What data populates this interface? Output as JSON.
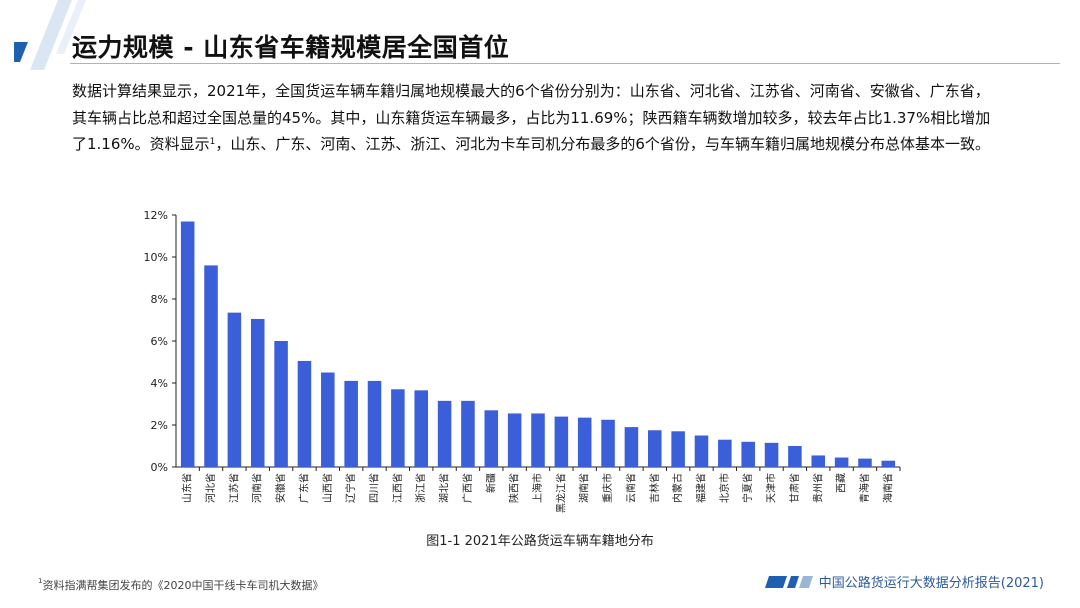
{
  "title": "运力规模 - 山东省车籍规模居全国首位",
  "body": {
    "text_before_sup": "数据计算结果显示，2021年，全国货运车辆车籍归属地规模最大的6个省份分别为：山东省、河北省、江苏省、河南省、安徽省、广东省，其车辆占比总和超过全国总量的45%。其中，山东籍货运车辆最多，占比为11.69%；陕西籍车辆数增加较多，较去年占比1.37%相比增加了1.16%。资料显示",
    "sup": "1",
    "text_after_sup": "，山东、广东、河南、江苏、浙江、河北为卡车司机分布最多的6个省份，与车辆车籍归属地规模分布总体基本一致。"
  },
  "caption": "图1-1 2021年公路货运车辆车籍地分布",
  "footnote": {
    "sup": "1",
    "text": "资料指满帮集团发布的《2020中国干线卡车司机大数据》"
  },
  "report_name": "中国公路货运行大数据分析报告(2021)",
  "colors": {
    "bar": "#3b5fd9",
    "accent": "#1f5fb0",
    "rule": "#9ab7d8",
    "report_text": "#2c5a9c"
  },
  "chart_data": {
    "type": "bar",
    "title": "",
    "xlabel": "",
    "ylabel": "",
    "ylim": [
      0,
      12
    ],
    "yticks": [
      0,
      2,
      4,
      6,
      8,
      10,
      12
    ],
    "ytick_labels": [
      "0%",
      "2%",
      "4%",
      "6%",
      "8%",
      "10%",
      "12%"
    ],
    "categories": [
      "山东省",
      "河北省",
      "江苏省",
      "河南省",
      "安徽省",
      "广东省",
      "山西省",
      "辽宁省",
      "四川省",
      "江西省",
      "浙江省",
      "湖北省",
      "广西省",
      "新疆",
      "陕西省",
      "上海市",
      "黑龙江省",
      "湖南省",
      "重庆市",
      "云南省",
      "吉林省",
      "内蒙古",
      "福建省",
      "北京市",
      "宁夏省",
      "天津市",
      "甘肃省",
      "贵州省",
      "西藏",
      "青海省",
      "海南省"
    ],
    "values": [
      11.69,
      9.6,
      7.35,
      7.05,
      6.0,
      5.05,
      4.5,
      4.1,
      4.1,
      3.7,
      3.65,
      3.15,
      3.15,
      2.7,
      2.55,
      2.55,
      2.4,
      2.35,
      2.25,
      1.9,
      1.75,
      1.7,
      1.5,
      1.3,
      1.2,
      1.15,
      1.0,
      0.55,
      0.45,
      0.4,
      0.3
    ],
    "grid": false,
    "legend": "none"
  }
}
